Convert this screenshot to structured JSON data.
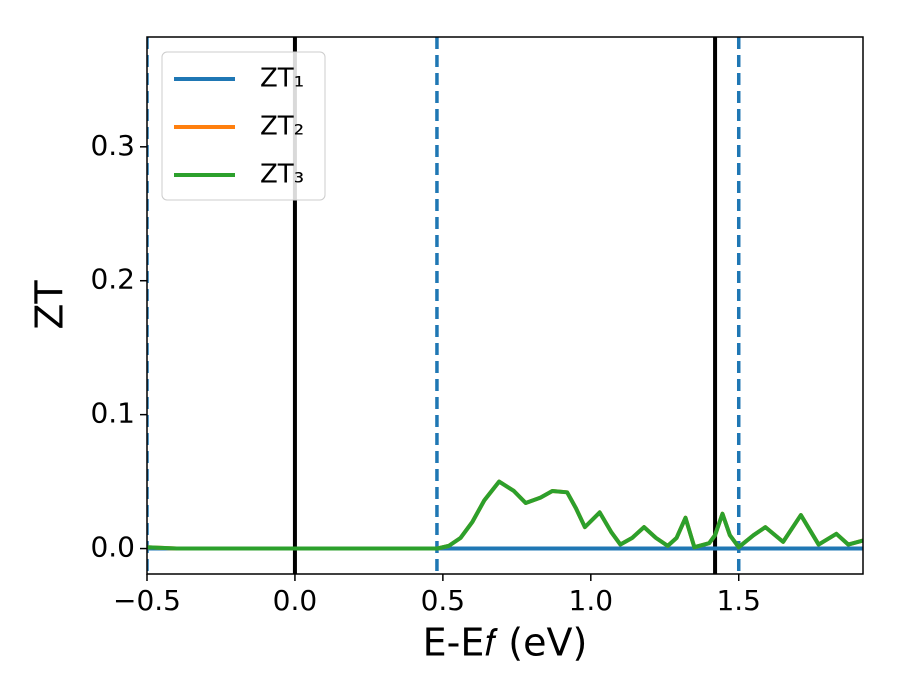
{
  "chart_data": {
    "type": "line",
    "xlabel": "E-E𝑓 (eV)",
    "ylabel": "ZT",
    "x": [
      -0.5,
      -0.4,
      -0.2,
      0,
      0.2,
      0.4,
      0.48,
      0.52,
      0.56,
      0.6,
      0.64,
      0.69,
      0.74,
      0.78,
      0.83,
      0.87,
      0.92,
      0.95,
      0.98,
      1.03,
      1.07,
      1.1,
      1.14,
      1.18,
      1.22,
      1.26,
      1.29,
      1.32,
      1.35,
      1.4,
      1.42,
      1.445,
      1.47,
      1.5,
      1.55,
      1.59,
      1.65,
      1.71,
      1.77,
      1.83,
      1.87,
      1.92
    ],
    "series": [
      {
        "name": "ZT₁",
        "color": "#1f77b4",
        "values": [
          0,
          0,
          0,
          0,
          0,
          0,
          0,
          0,
          0,
          0,
          0,
          0,
          0,
          0,
          0,
          0,
          0,
          0,
          0,
          0,
          0,
          0,
          0,
          0,
          0,
          0,
          0,
          0,
          0,
          0,
          0,
          0,
          0,
          0,
          0,
          0,
          0,
          0,
          0,
          0,
          0,
          0
        ]
      },
      {
        "name": "ZT₂",
        "color": "#ff7f0e",
        "values": [
          0.001,
          0,
          0,
          0,
          0,
          0,
          0,
          0.002,
          0.008,
          0.02,
          0.036,
          0.05,
          0.043,
          0.034,
          0.038,
          0.043,
          0.042,
          0.03,
          0.016,
          0.027,
          0.012,
          0.003,
          0.008,
          0.016,
          0.008,
          0.002,
          0.008,
          0.023,
          0.001,
          0.004,
          0.01,
          0.026,
          0.01,
          0.001,
          0.01,
          0.016,
          0.005,
          0.025,
          0.003,
          0.011,
          0.003,
          0.006
        ]
      },
      {
        "name": "ZT₃",
        "color": "#2ca02c",
        "values": [
          0.001,
          0,
          0,
          0,
          0,
          0,
          0,
          0.002,
          0.008,
          0.02,
          0.036,
          0.05,
          0.043,
          0.034,
          0.038,
          0.043,
          0.042,
          0.03,
          0.016,
          0.027,
          0.012,
          0.003,
          0.008,
          0.016,
          0.008,
          0.002,
          0.008,
          0.023,
          0.001,
          0.004,
          0.01,
          0.026,
          0.01,
          0.001,
          0.01,
          0.016,
          0.005,
          0.025,
          0.003,
          0.011,
          0.003,
          0.006
        ]
      }
    ],
    "vlines": [
      {
        "x": -0.5,
        "color": "#1f77b4",
        "style": "dashed"
      },
      {
        "x": 0,
        "color": "#000000",
        "style": "solid"
      },
      {
        "x": 0.48,
        "color": "#1f77b4",
        "style": "dashed"
      },
      {
        "x": 1.42,
        "color": "#000000",
        "style": "solid"
      },
      {
        "x": 1.5,
        "color": "#1f77b4",
        "style": "dashed"
      }
    ],
    "xlim": [
      -0.5,
      1.92
    ],
    "ylim": [
      -0.019,
      0.382
    ],
    "xticks": [
      {
        "value": -0.5,
        "label": "−0.5"
      },
      {
        "value": 0,
        "label": "0.0"
      },
      0.5,
      {
        "value": 1,
        "label": "1.0"
      },
      1.5
    ],
    "yticks": [
      {
        "value": 0,
        "label": "0.0"
      },
      0.1,
      0.2,
      0.3
    ],
    "legend": "upper left"
  }
}
